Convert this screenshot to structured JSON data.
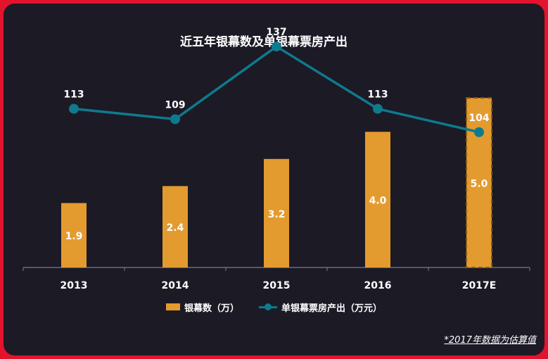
{
  "chart_data": {
    "type": "bar",
    "title": "近五年银幕数及单银幕票房产出",
    "categories": [
      "2013",
      "2014",
      "2015",
      "2016",
      "2017E"
    ],
    "series": [
      {
        "name": "银幕数（万）",
        "kind": "bar",
        "values": [
          1.9,
          2.4,
          3.2,
          4.0,
          5.0
        ],
        "labels": [
          "1.9",
          "2.4",
          "3.2",
          "4.0",
          "5.0"
        ],
        "color": "#e39b2f",
        "estimated_last": true
      },
      {
        "name": "单银幕票房产出（万元）",
        "kind": "line",
        "values": [
          113,
          109,
          137,
          113,
          104
        ],
        "labels": [
          "113",
          "109",
          "137",
          "113",
          "104"
        ],
        "color": "#0e7a8e"
      }
    ],
    "bar_ylim": [
      0,
      5.5
    ],
    "line_ylim": [
      60,
      140
    ],
    "grid": false,
    "legend_position": "bottom"
  },
  "footnote": "*2017年数据为估算值"
}
